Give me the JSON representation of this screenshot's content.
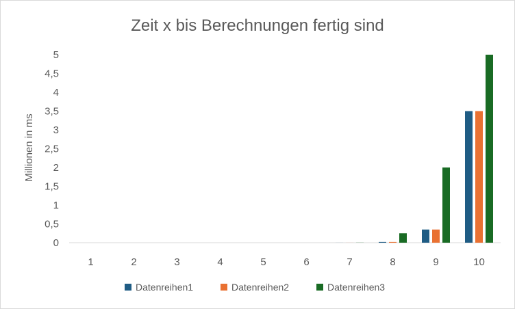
{
  "chart_data": {
    "type": "bar",
    "title": "Zeit x bis Berechnungen fertig sind",
    "xlabel": "",
    "ylabel": "Millionen in ms",
    "categories": [
      "1",
      "2",
      "3",
      "4",
      "5",
      "6",
      "7",
      "8",
      "9",
      "10"
    ],
    "ylim": [
      0,
      5
    ],
    "yticks": [
      "0",
      "0,5",
      "1",
      "1,5",
      "2",
      "2,5",
      "3",
      "3,5",
      "4",
      "4,5",
      "5"
    ],
    "grid": false,
    "legend": "bottom",
    "series": [
      {
        "name": "Datenreihen1",
        "color": "#1f5c84",
        "values": [
          0,
          0,
          0,
          0,
          0,
          0,
          0.001,
          0.02,
          0.35,
          3.5
        ]
      },
      {
        "name": "Datenreihen2",
        "color": "#e97132",
        "values": [
          0,
          0,
          0,
          0,
          0,
          0,
          0.001,
          0.02,
          0.35,
          3.5
        ]
      },
      {
        "name": "Datenreihen3",
        "color": "#196b24",
        "values": [
          0,
          0,
          0,
          0,
          0,
          0,
          0.003,
          0.25,
          2.0,
          5.0
        ]
      }
    ]
  }
}
